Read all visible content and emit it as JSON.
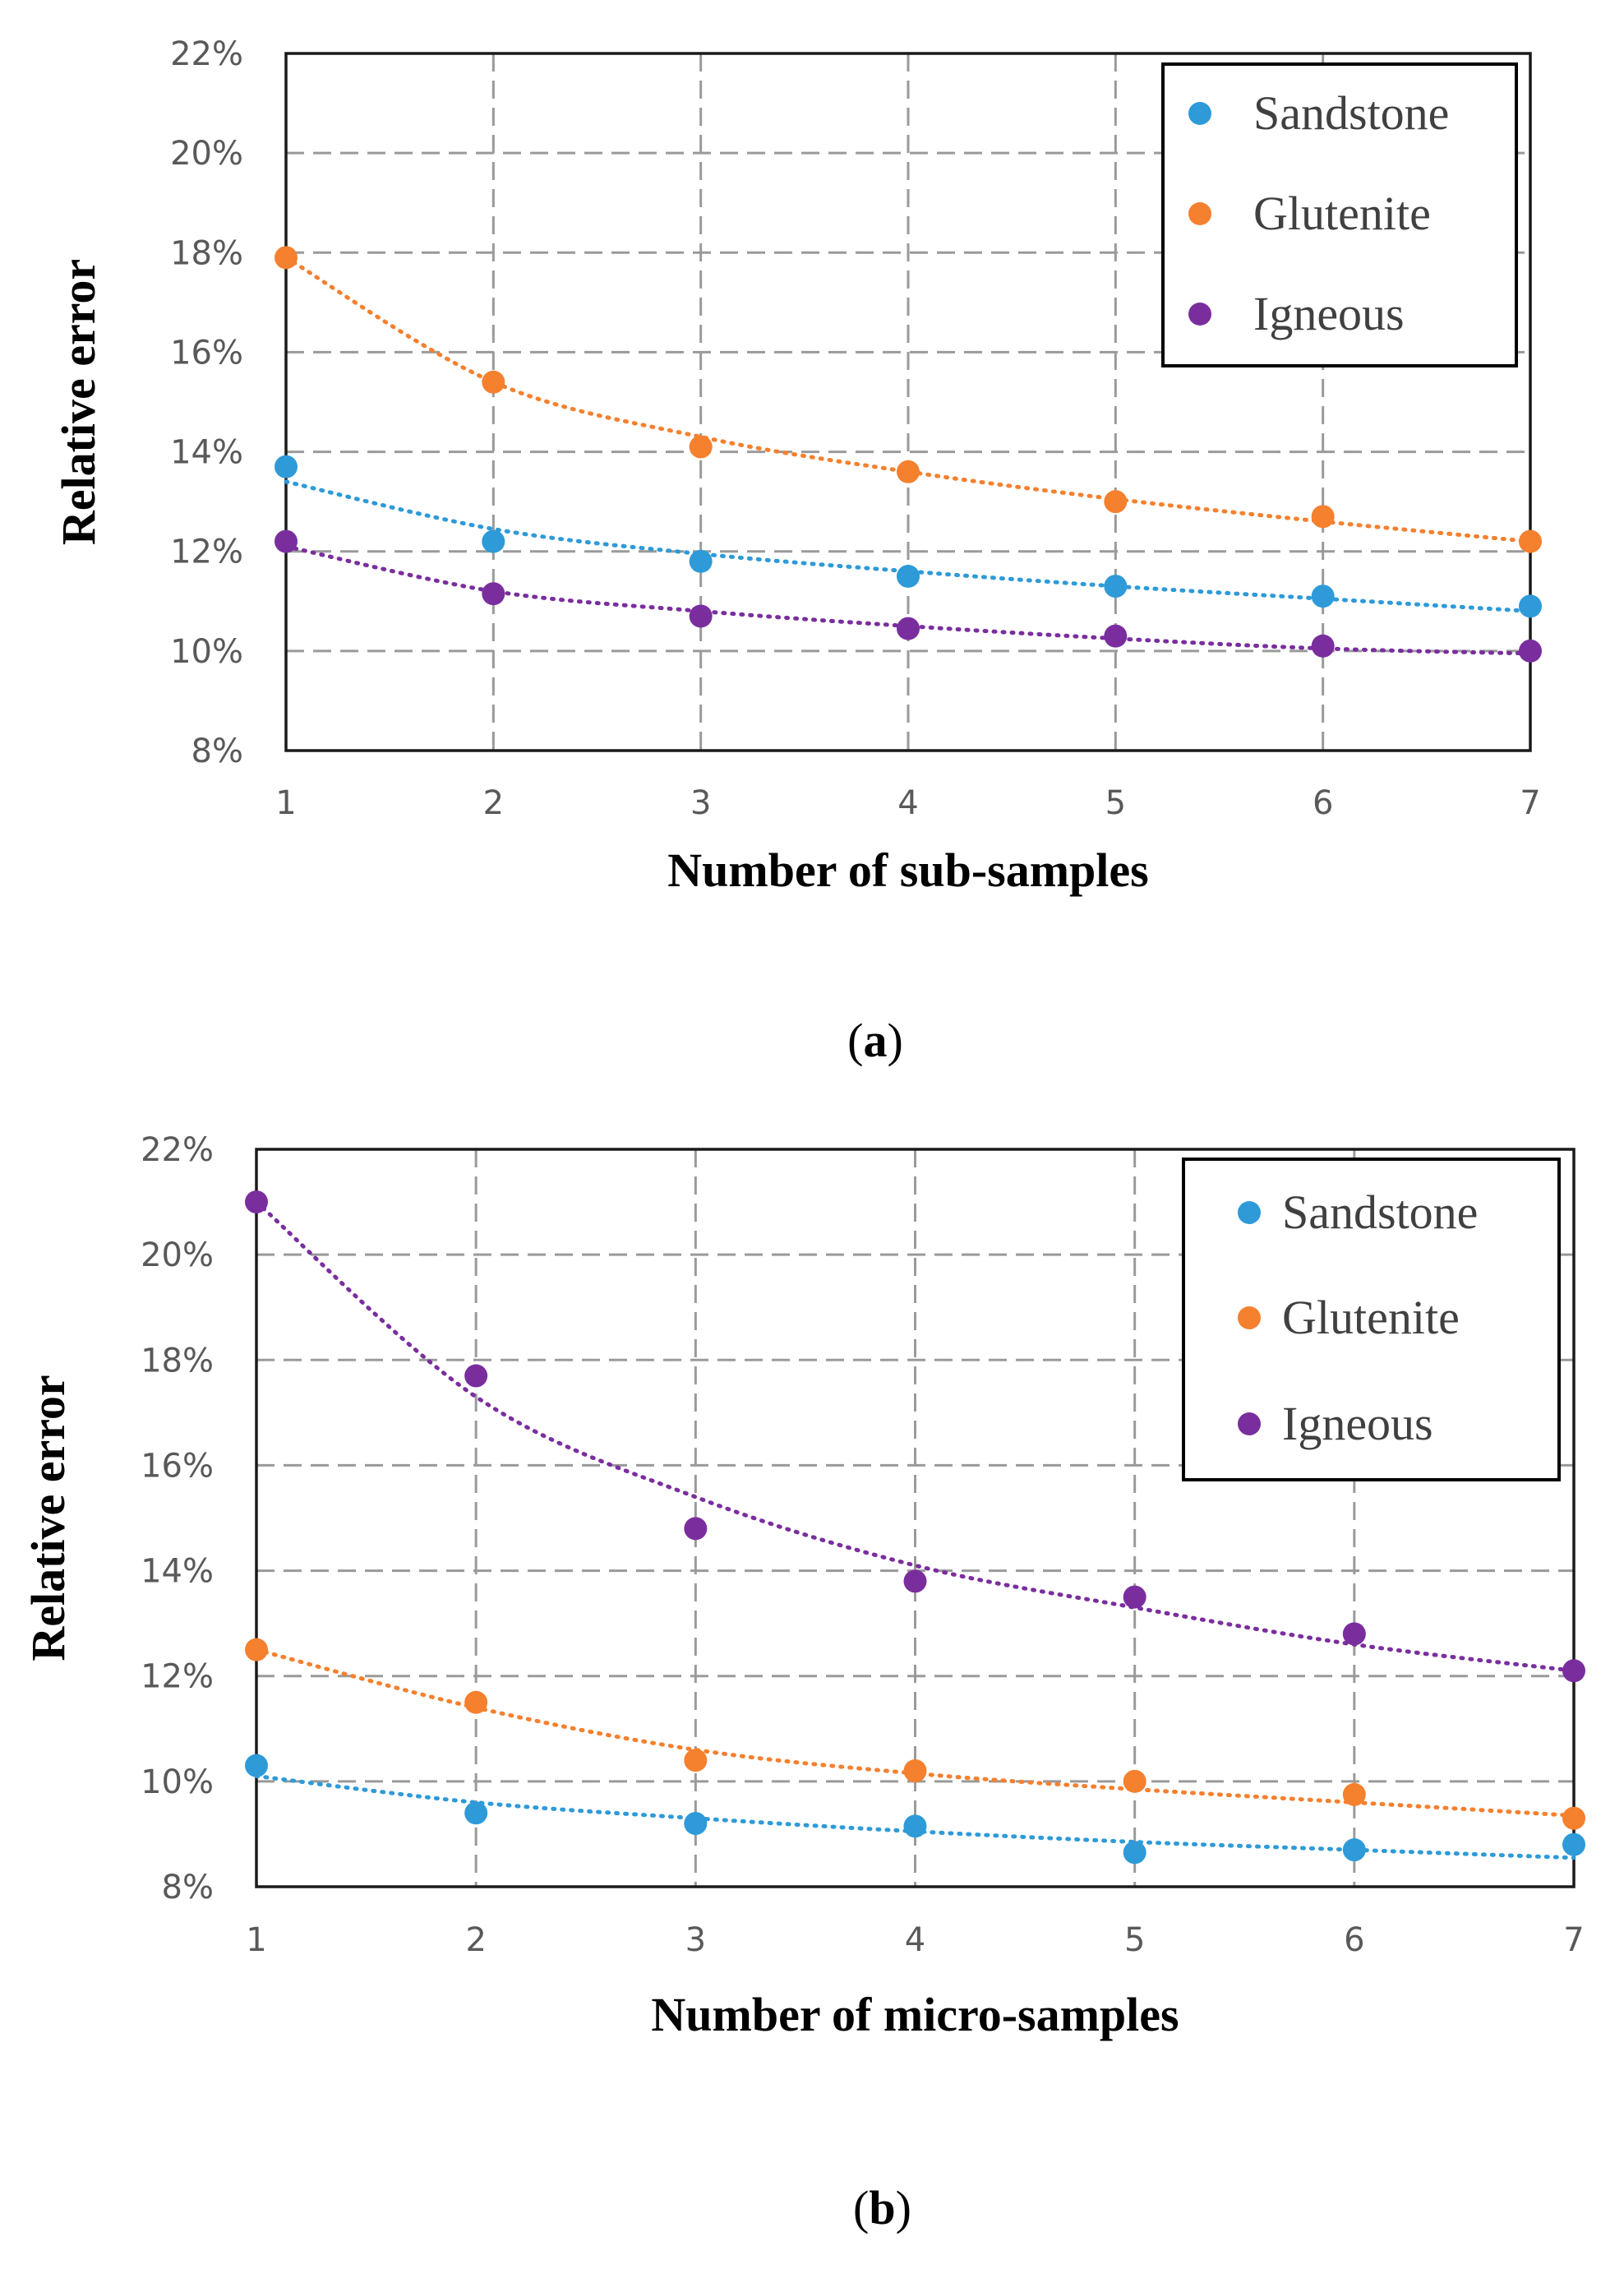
{
  "chart_data": [
    {
      "type": "scatter",
      "panel_label": "a",
      "xlabel": "Number of sub-samples",
      "ylabel": "Relative error",
      "x": [
        1,
        2,
        3,
        4,
        5,
        6,
        7
      ],
      "x_ticks": [
        "1",
        "2",
        "3",
        "4",
        "5",
        "6",
        "7"
      ],
      "ylim": [
        8,
        22
      ],
      "y_ticks": [
        "8%",
        "10%",
        "12%",
        "14%",
        "16%",
        "18%",
        "20%",
        "22%"
      ],
      "grid": true,
      "legend_position": "top-right",
      "trendline": "power (dotted)",
      "series": [
        {
          "name": "Sandstone",
          "color": "#2E9AD8",
          "values": [
            13.7,
            12.2,
            11.8,
            11.5,
            11.3,
            11.1,
            10.9
          ],
          "trend": [
            13.4,
            12.45,
            11.95,
            11.6,
            11.3,
            11.05,
            10.8
          ]
        },
        {
          "name": "Glutenite",
          "color": "#F5802E",
          "values": [
            17.9,
            15.4,
            14.1,
            13.6,
            13.0,
            12.7,
            12.2
          ],
          "trend": [
            17.9,
            15.4,
            14.3,
            13.6,
            13.05,
            12.6,
            12.2
          ]
        },
        {
          "name": "Igneous",
          "color": "#7A2E9E",
          "values": [
            12.2,
            11.15,
            10.7,
            10.45,
            10.3,
            10.1,
            10.0
          ],
          "trend": [
            12.1,
            11.2,
            10.8,
            10.5,
            10.25,
            10.05,
            9.95
          ]
        }
      ]
    },
    {
      "type": "scatter",
      "panel_label": "b",
      "xlabel": "Number of micro-samples",
      "ylabel": "Relative error",
      "x": [
        1,
        2,
        3,
        4,
        5,
        6,
        7
      ],
      "x_ticks": [
        "1",
        "2",
        "3",
        "4",
        "5",
        "6",
        "7"
      ],
      "ylim": [
        8,
        22
      ],
      "y_ticks": [
        "8%",
        "10%",
        "12%",
        "14%",
        "16%",
        "18%",
        "20%",
        "22%"
      ],
      "grid": true,
      "legend_position": "top-right",
      "trendline": "power (dotted)",
      "series": [
        {
          "name": "Sandstone",
          "color": "#2E9AD8",
          "values": [
            10.3,
            9.4,
            9.2,
            9.15,
            8.65,
            8.7,
            8.8
          ],
          "trend": [
            10.1,
            9.6,
            9.3,
            9.05,
            8.85,
            8.7,
            8.55
          ]
        },
        {
          "name": "Glutenite",
          "color": "#F5802E",
          "values": [
            12.5,
            11.5,
            10.4,
            10.2,
            10.0,
            9.75,
            9.3
          ],
          "trend": [
            12.5,
            11.4,
            10.6,
            10.15,
            9.85,
            9.6,
            9.35
          ]
        },
        {
          "name": "Igneous",
          "color": "#7A2E9E",
          "values": [
            21.0,
            17.7,
            14.8,
            13.8,
            13.5,
            12.8,
            12.1
          ],
          "trend": [
            21.0,
            17.3,
            15.4,
            14.1,
            13.3,
            12.6,
            12.1
          ]
        }
      ]
    }
  ]
}
